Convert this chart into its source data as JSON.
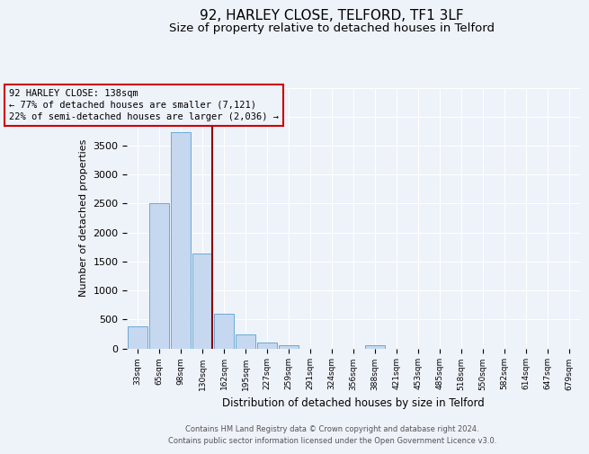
{
  "title": "92, HARLEY CLOSE, TELFORD, TF1 3LF",
  "subtitle": "Size of property relative to detached houses in Telford",
  "xlabel": "Distribution of detached houses by size in Telford",
  "ylabel": "Number of detached properties",
  "categories": [
    "33sqm",
    "65sqm",
    "98sqm",
    "130sqm",
    "162sqm",
    "195sqm",
    "227sqm",
    "259sqm",
    "291sqm",
    "324sqm",
    "356sqm",
    "388sqm",
    "421sqm",
    "453sqm",
    "485sqm",
    "518sqm",
    "550sqm",
    "582sqm",
    "614sqm",
    "647sqm",
    "679sqm"
  ],
  "values": [
    375,
    2500,
    3725,
    1640,
    590,
    240,
    95,
    55,
    0,
    0,
    0,
    55,
    0,
    0,
    0,
    0,
    0,
    0,
    0,
    0,
    0
  ],
  "bar_color": "#c5d8ef",
  "bar_edge_color": "#6aaad4",
  "property_label": "92 HARLEY CLOSE: 138sqm",
  "annotation_line1": "← 77% of detached houses are smaller (7,121)",
  "annotation_line2": "22% of semi-detached houses are larger (2,036) →",
  "vline_color": "#8b0000",
  "box_edge_color": "#cc0000",
  "ylim": [
    0,
    4500
  ],
  "footer1": "Contains HM Land Registry data © Crown copyright and database right 2024.",
  "footer2": "Contains public sector information licensed under the Open Government Licence v3.0.",
  "background_color": "#eef2f9",
  "grid_color": "#ffffff",
  "title_fontsize": 11,
  "subtitle_fontsize": 9.5
}
